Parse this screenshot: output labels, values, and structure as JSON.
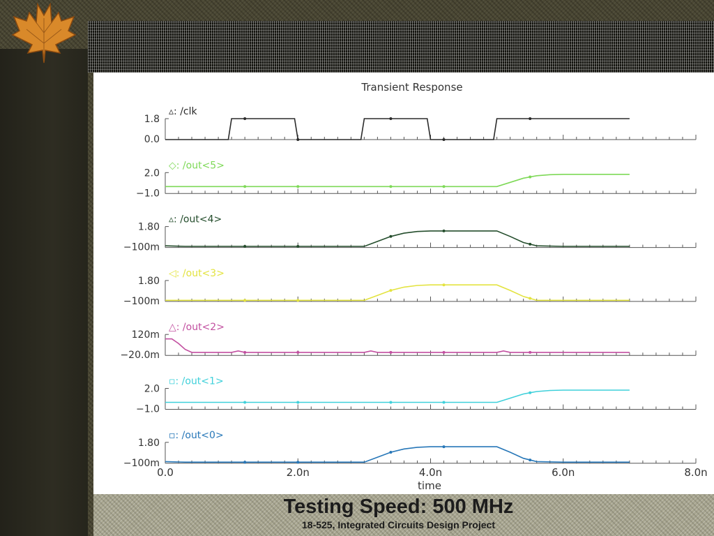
{
  "slide": {
    "title": "Testing Speed: 500 MHz",
    "subtitle": "18-525, Integrated Circuits Design Project"
  },
  "chart_data": {
    "type": "line",
    "title": "Transient Response",
    "xlabel": "time",
    "xlim": [
      0,
      8
    ],
    "x_tick_labels": [
      "0.0",
      "2.0n",
      "4.0n",
      "6.0n",
      "8.0n"
    ],
    "x_ticks": [
      0,
      2,
      4,
      6,
      8
    ],
    "panels": [
      {
        "name": "/clk",
        "marker": "▵:",
        "color": "#2a2a2a",
        "y_max_label": "1.8",
        "y_min_label": "0.0",
        "ylim": [
          0,
          1.8
        ],
        "x": [
          0,
          0.95,
          1.0,
          1.95,
          2.0,
          2.95,
          3.0,
          3.95,
          4.0,
          4.95,
          5.0,
          7.0
        ],
        "y": [
          0,
          0,
          1.8,
          1.8,
          0,
          0,
          1.8,
          1.8,
          0,
          0,
          1.8,
          1.8
        ]
      },
      {
        "name": "/out<5>",
        "marker": "◇:",
        "color": "#7ed957",
        "y_max_label": "2.0",
        "y_min_label": "−1.0",
        "ylim": [
          -1,
          2
        ],
        "x": [
          0,
          5.0,
          5.2,
          5.4,
          5.6,
          5.8,
          6.0,
          7.0
        ],
        "y": [
          0,
          0,
          0.6,
          1.2,
          1.55,
          1.7,
          1.75,
          1.75
        ]
      },
      {
        "name": "/out<4>",
        "marker": "▵:",
        "color": "#244d2c",
        "y_max_label": "1.80",
        "y_min_label": "−100m",
        "ylim": [
          -0.1,
          1.8
        ],
        "x": [
          0,
          0.3,
          3.0,
          3.2,
          3.4,
          3.6,
          3.8,
          4.0,
          5.0,
          5.2,
          5.4,
          5.6,
          6.0,
          7.0
        ],
        "y": [
          0.05,
          0,
          0,
          0.45,
          0.9,
          1.2,
          1.35,
          1.4,
          1.4,
          0.9,
          0.35,
          0.05,
          0,
          0
        ]
      },
      {
        "name": "/out<3>",
        "marker": "◁:",
        "color": "#e3e340",
        "y_max_label": "1.80",
        "y_min_label": "−100m",
        "ylim": [
          -0.1,
          1.8
        ],
        "x": [
          0,
          3.0,
          3.2,
          3.4,
          3.6,
          3.8,
          4.0,
          5.0,
          5.2,
          5.4,
          5.6,
          7.0
        ],
        "y": [
          0,
          0,
          0.45,
          0.9,
          1.2,
          1.35,
          1.4,
          1.4,
          0.9,
          0.35,
          0,
          0
        ]
      },
      {
        "name": "/out<2>",
        "marker": "△:",
        "color": "#c24fa0",
        "y_max_label": "120m",
        "y_min_label": "−20.0m",
        "ylim": [
          -0.02,
          0.12
        ],
        "x": [
          0,
          0.1,
          0.2,
          0.3,
          0.4,
          1.0,
          1.1,
          1.2,
          3.0,
          3.1,
          3.2,
          5.0,
          5.1,
          5.2,
          7.0
        ],
        "y": [
          0.09,
          0.09,
          0.06,
          0.02,
          0,
          0,
          0.01,
          0,
          0,
          0.01,
          0,
          0,
          0.01,
          0,
          0
        ]
      },
      {
        "name": "/out<1>",
        "marker": "▫:",
        "color": "#3fd0da",
        "y_max_label": "2.0",
        "y_min_label": "−1.0",
        "ylim": [
          -1,
          2
        ],
        "x": [
          0,
          5.0,
          5.2,
          5.4,
          5.6,
          5.8,
          6.0,
          7.0
        ],
        "y": [
          0,
          0,
          0.6,
          1.2,
          1.55,
          1.7,
          1.75,
          1.75
        ]
      },
      {
        "name": "/out<0>",
        "marker": "▫:",
        "color": "#2777b8",
        "y_max_label": "1.80",
        "y_min_label": "−100m",
        "ylim": [
          -0.1,
          1.8
        ],
        "x": [
          0,
          0.3,
          3.0,
          3.2,
          3.4,
          3.6,
          3.8,
          4.0,
          5.0,
          5.2,
          5.4,
          5.6,
          6.0,
          7.0
        ],
        "y": [
          0.05,
          0,
          0,
          0.45,
          0.9,
          1.2,
          1.35,
          1.4,
          1.4,
          0.9,
          0.35,
          0.05,
          0,
          0
        ]
      }
    ]
  }
}
